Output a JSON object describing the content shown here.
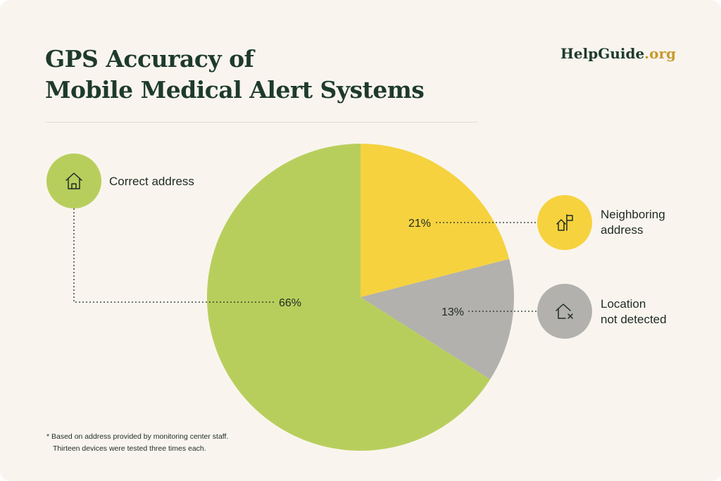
{
  "header": {
    "title_line1": "GPS Accuracy of",
    "title_line2": "Mobile Medical Alert Systems",
    "brand_name": "HelpGuide",
    "brand_tld": ".org"
  },
  "chart_data": {
    "type": "pie",
    "title": "GPS Accuracy of Mobile Medical Alert Systems",
    "slices": [
      {
        "label": "Neighboring address",
        "value": 21,
        "value_label": "21%",
        "color": "#f6d23f",
        "icon": "house-with-flag-icon"
      },
      {
        "label": "Location not detected",
        "value": 13,
        "value_label": "13%",
        "color": "#b2b1ad",
        "icon": "house-x-icon"
      },
      {
        "label": "Correct address",
        "value": 66,
        "value_label": "66%",
        "color": "#b8ce5c",
        "icon": "house-icon"
      }
    ]
  },
  "legend": {
    "correct": {
      "label": "Correct address"
    },
    "neighboring": {
      "line1": "Neighboring",
      "line2": "address"
    },
    "not_detected": {
      "line1": "Location",
      "line2": "not detected"
    }
  },
  "footnote": {
    "line1": "* Based on address provided by monitoring center staff.",
    "line2": "Thirteen devices were tested three times each."
  },
  "colors": {
    "background": "#f9f5ee",
    "title": "#1e3a2c",
    "brand_accent": "#c99a2e"
  }
}
